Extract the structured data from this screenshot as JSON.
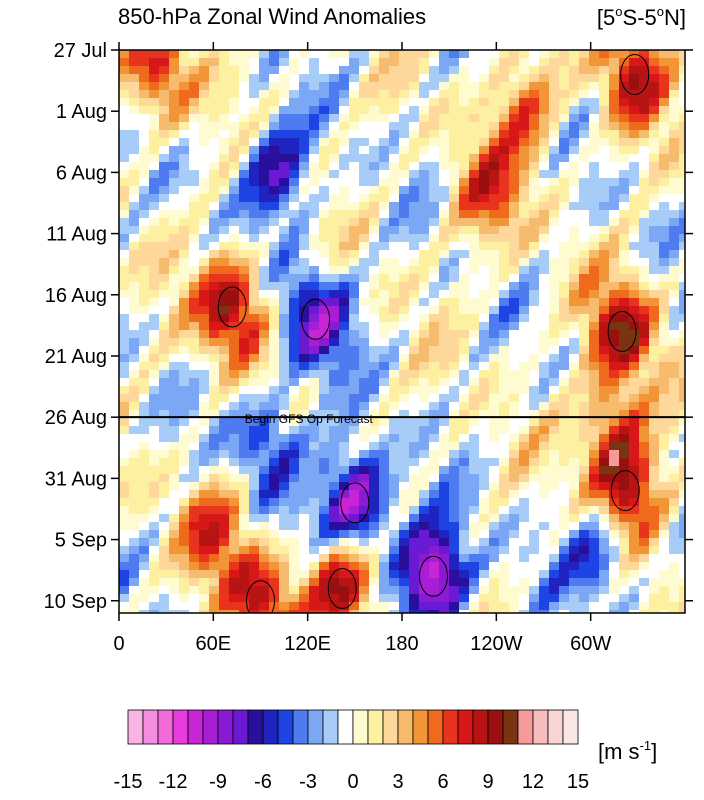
{
  "title": {
    "left": "850-hPa Zonal Wind Anomalies",
    "right_prefix": "[5",
    "right_deg1": "o",
    "right_mid": "S-5",
    "right_deg2": "o",
    "right_suffix": "N]"
  },
  "annotation": "Begin GFS Op Forecast",
  "colorbar": {
    "units_prefix": "[m s",
    "units_exp": "-1",
    "units_suffix": "]",
    "colors": [
      "#f9b3e4",
      "#f58ee0",
      "#f26bd9",
      "#e83ce0",
      "#c924d6",
      "#a81ed4",
      "#8a1ad4",
      "#6a1ad2",
      "#2a0f9c",
      "#1f23c0",
      "#1e45e4",
      "#4f7bf0",
      "#7ba7f5",
      "#a7ccf7",
      "#ffffff",
      "#fffbd0",
      "#fdf0a0",
      "#fdd89a",
      "#f6bb6c",
      "#f29536",
      "#ef6a1c",
      "#e8341c",
      "#d81818",
      "#b81414",
      "#9a1010",
      "#7a3412",
      "#f79a9a",
      "#f7bcbc",
      "#f8d4d4",
      "#f9e6e6"
    ],
    "tick_labels": [
      "-15",
      "-12",
      "-9",
      "-6",
      "-3",
      "0",
      "3",
      "6",
      "9",
      "12",
      "15"
    ]
  },
  "chart_data": {
    "type": "heatmap",
    "title": "850-hPa Zonal Wind Anomalies",
    "subtitle": "[5°S-5°N]",
    "x_ticks": [
      "0",
      "60E",
      "120E",
      "180",
      "120W",
      "60W"
    ],
    "x_tick_values": [
      0,
      60,
      120,
      180,
      240,
      300
    ],
    "x_range": [
      0,
      360
    ],
    "y_ticks": [
      "27 Jul",
      "1 Aug",
      "6 Aug",
      "11 Aug",
      "16 Aug",
      "21 Aug",
      "26 Aug",
      "31 Aug",
      "5 Sep",
      "10 Sep"
    ],
    "y_range": [
      "27 Jul",
      "11 Sep"
    ],
    "forecast_start": "26 Aug",
    "color_range": [
      -15,
      15
    ],
    "units": "m s-1",
    "anomaly_features": [
      {
        "sign": "easterly",
        "center_lon": 100,
        "center_date": "6 Aug",
        "value": -7
      },
      {
        "sign": "easterly",
        "center_lon": 125,
        "center_date": "18 Aug",
        "value": -8
      },
      {
        "sign": "easterly",
        "center_lon": 150,
        "center_date": "2 Sep",
        "value": -11
      },
      {
        "sign": "easterly",
        "center_lon": 200,
        "center_date": "8 Sep",
        "value": -12
      },
      {
        "sign": "easterly",
        "center_lon": 95,
        "center_date": "28 Aug",
        "value": -6
      },
      {
        "sign": "easterly",
        "center_lon": 305,
        "center_date": "6 Sep",
        "value": -6
      },
      {
        "sign": "westerly",
        "center_lon": 72,
        "center_date": "17 Aug",
        "value": 10
      },
      {
        "sign": "westerly",
        "center_lon": 320,
        "center_date": "19 Aug",
        "value": 9
      },
      {
        "sign": "westerly",
        "center_lon": 322,
        "center_date": "1 Sep",
        "value": 9
      },
      {
        "sign": "westerly",
        "center_lon": 328,
        "center_date": "29 Jul",
        "value": 8
      },
      {
        "sign": "westerly",
        "center_lon": 258,
        "center_date": "1 Aug",
        "value": 6
      },
      {
        "sign": "westerly",
        "center_lon": 235,
        "center_date": "8 Aug",
        "value": 6
      },
      {
        "sign": "westerly",
        "center_lon": 142,
        "center_date": "9 Sep",
        "value": 10
      },
      {
        "sign": "westerly",
        "center_lon": 90,
        "center_date": "10 Sep",
        "value": 8
      },
      {
        "sign": "westerly",
        "center_lon": 60,
        "center_date": "4 Sep",
        "value": 6
      },
      {
        "sign": "westerly",
        "center_lon": 315,
        "center_date": "27 Aug",
        "value": 7
      },
      {
        "sign": "westerly",
        "center_lon": 25,
        "center_date": "29 Jul",
        "value": 7
      }
    ]
  }
}
